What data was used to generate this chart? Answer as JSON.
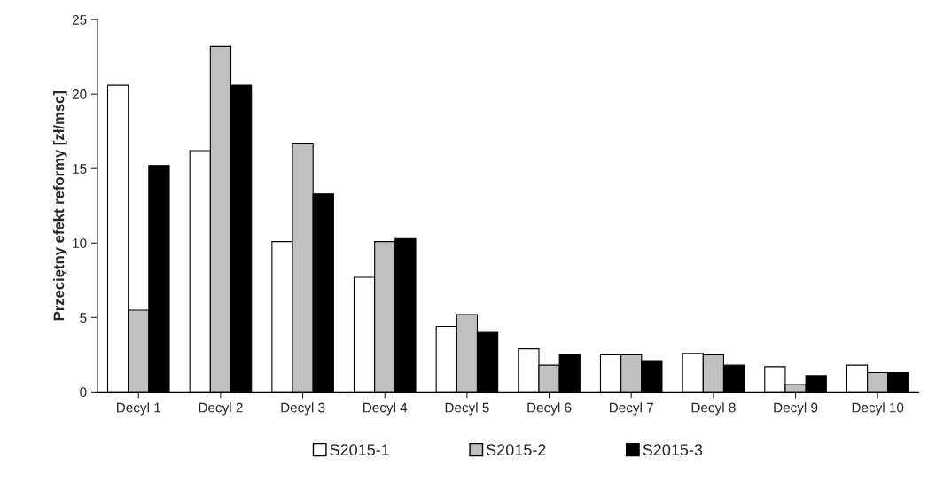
{
  "chart_data": {
    "type": "bar",
    "ylabel": "Przeciętny efekt reformy [zł/msc]",
    "categories": [
      "Decyl 1",
      "Decyl 2",
      "Decyl 3",
      "Decyl 4",
      "Decyl 5",
      "Decyl 6",
      "Decyl 7",
      "Decyl 8",
      "Decyl 9",
      "Decyl 10"
    ],
    "series": [
      {
        "name": "S2015-1",
        "color": "#ffffff",
        "values": [
          20.6,
          16.2,
          10.1,
          7.7,
          4.4,
          2.9,
          2.5,
          2.6,
          1.7,
          1.8
        ]
      },
      {
        "name": "S2015-2",
        "color": "#c0c0c0",
        "values": [
          5.5,
          23.2,
          16.7,
          10.1,
          5.2,
          1.8,
          2.5,
          2.5,
          0.5,
          1.3
        ]
      },
      {
        "name": "S2015-3",
        "color": "#000000",
        "values": [
          15.2,
          20.6,
          13.3,
          10.3,
          4.0,
          2.5,
          2.1,
          1.8,
          1.1,
          1.3
        ]
      }
    ],
    "ylim": [
      0,
      25
    ],
    "yticks": [
      0,
      5,
      10,
      15,
      20,
      25
    ],
    "grid": false,
    "legend": "bottom"
  }
}
